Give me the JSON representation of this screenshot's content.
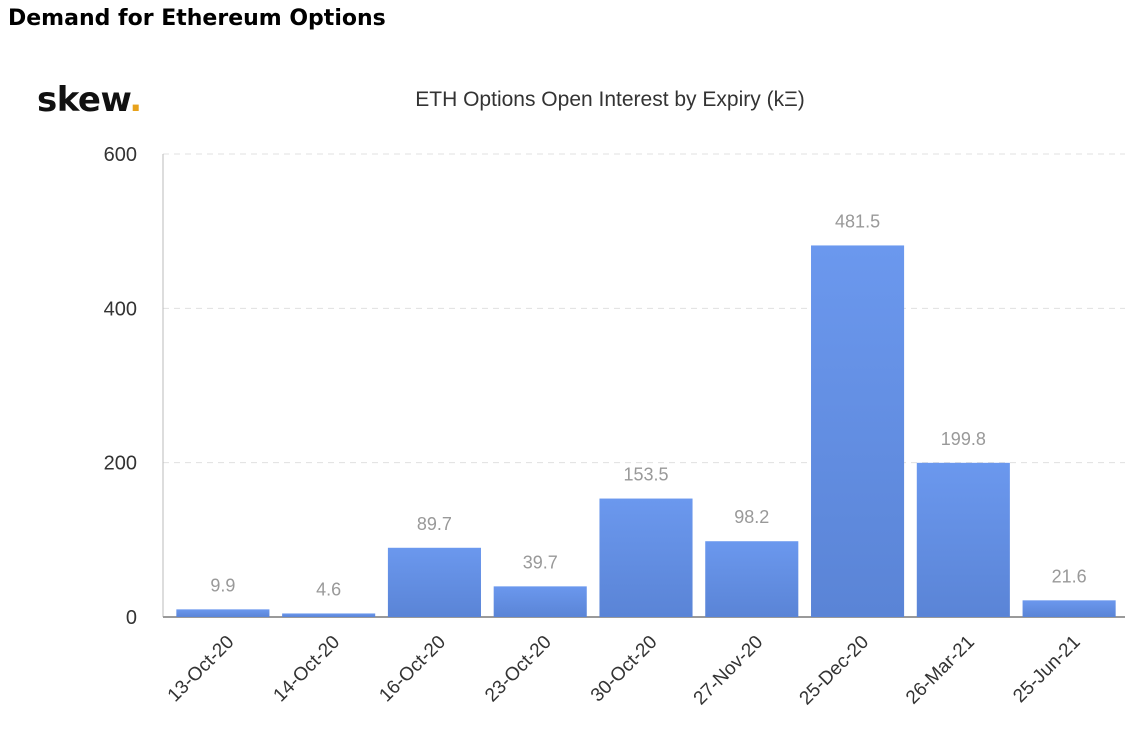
{
  "heading": "Demand for Ethereum Options",
  "logo": {
    "text": "skew",
    "dot": "."
  },
  "chart_data": {
    "type": "bar",
    "title": "ETH Options Open Interest by Expiry (kΞ)",
    "xlabel": "",
    "ylabel": "",
    "categories": [
      "13-Oct-20",
      "14-Oct-20",
      "16-Oct-20",
      "23-Oct-20",
      "30-Oct-20",
      "27-Nov-20",
      "25-Dec-20",
      "26-Mar-21",
      "25-Jun-21"
    ],
    "values": [
      9.9,
      4.6,
      89.7,
      39.7,
      153.5,
      98.2,
      481.5,
      199.8,
      21.6
    ],
    "data_labels": [
      "9.9",
      "4.6",
      "89.7",
      "39.7",
      "153.5",
      "98.2",
      "481.5",
      "199.8",
      "21.6"
    ],
    "ylim": [
      0,
      600
    ],
    "yticks": [
      0,
      200,
      400,
      600
    ],
    "grid": true,
    "bar_color_top": "#6b98ee",
    "bar_color_bottom": "#5a84d6",
    "grid_color": "#e0e0e0"
  }
}
